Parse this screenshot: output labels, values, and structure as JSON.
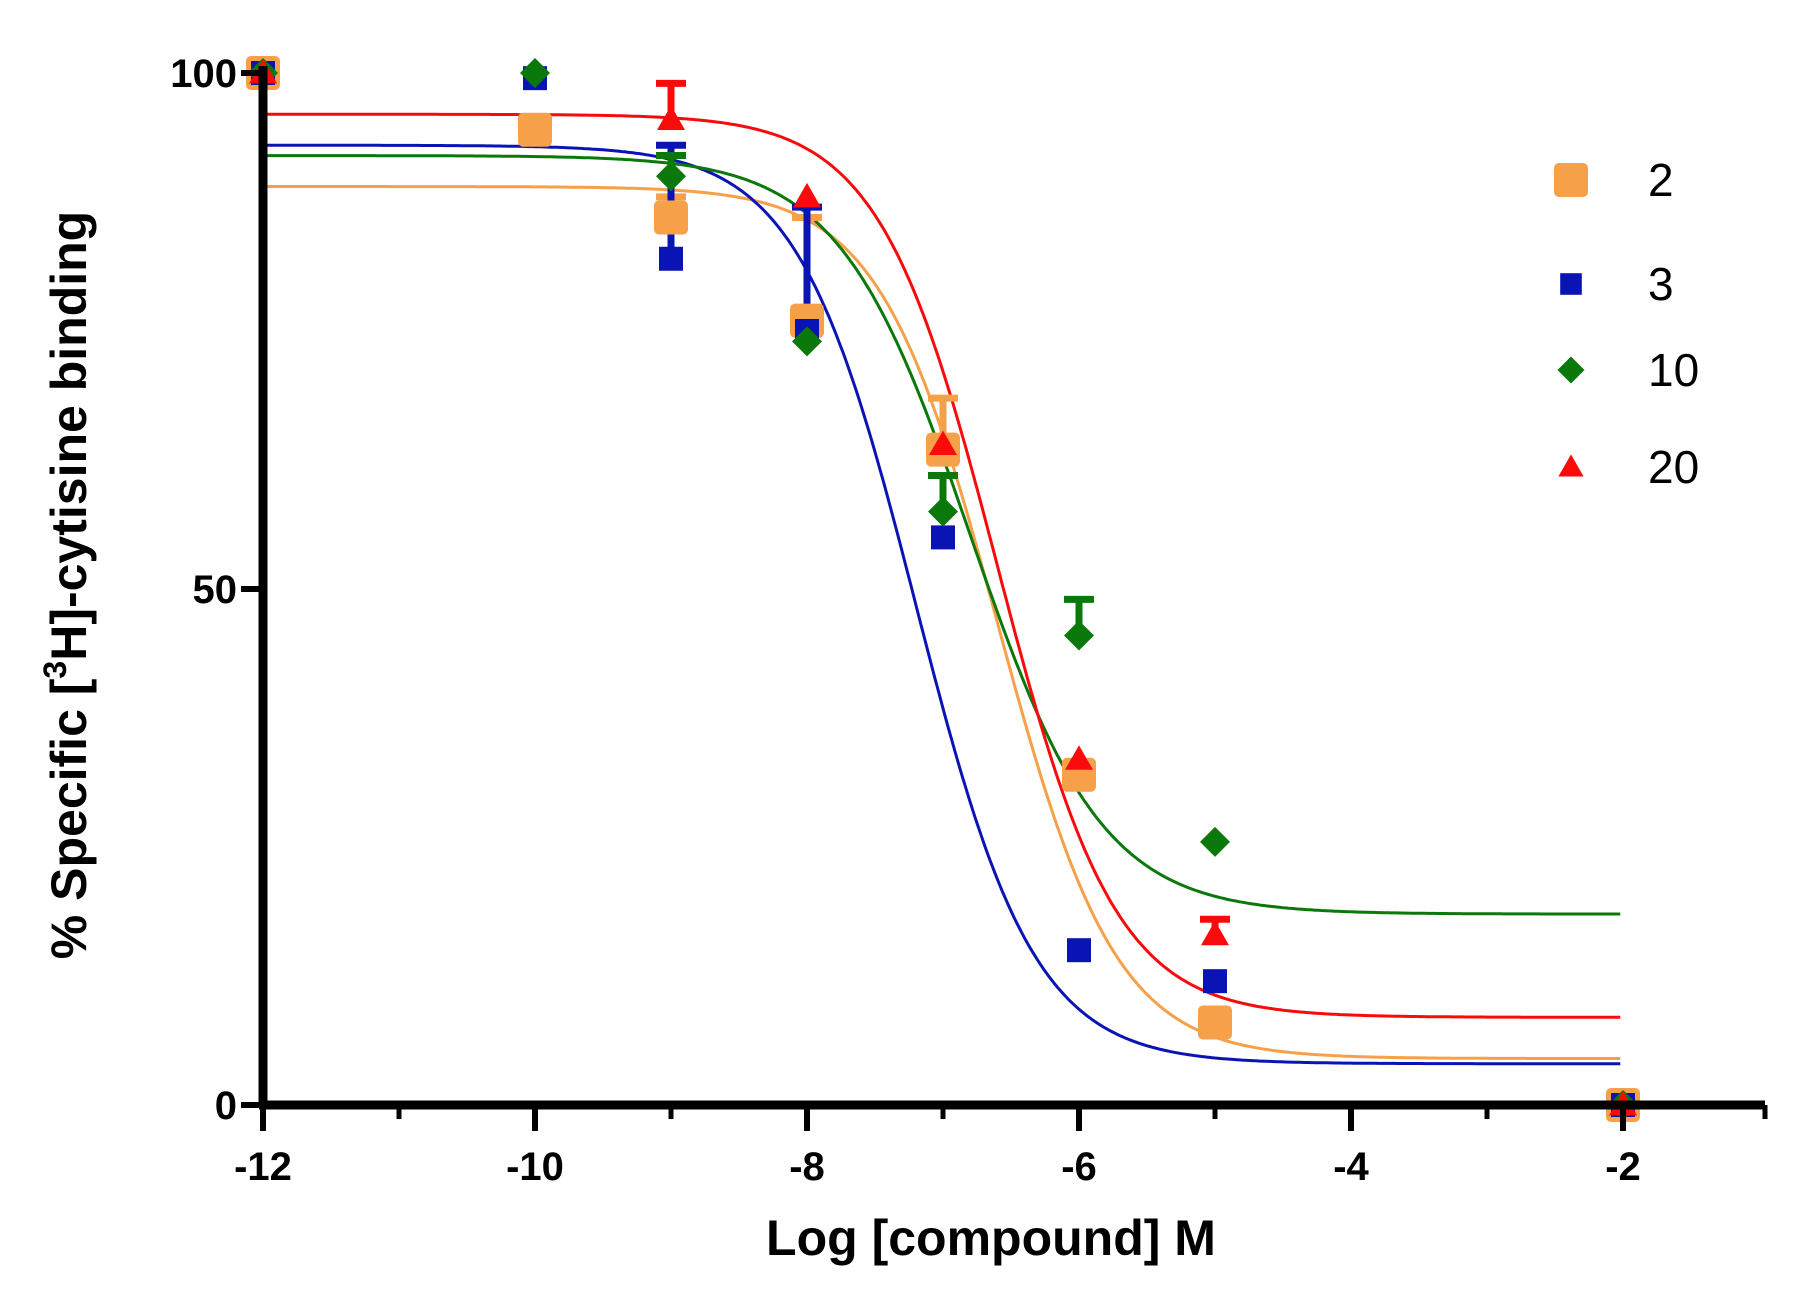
{
  "chart_data": {
    "type": "scatter",
    "title": "",
    "xlabel": "Log [compound] M",
    "ylabel_parts": [
      "% Specific [",
      "3",
      "H]-cytisine binding"
    ],
    "xlim": [
      -12,
      -1
    ],
    "ylim": [
      0,
      100
    ],
    "x_ticks": [
      -12,
      -10,
      -8,
      -6,
      -4,
      -2
    ],
    "x_minor_ticks": [
      -11,
      -9,
      -7,
      -5,
      -3
    ],
    "y_ticks": [
      0,
      50,
      100
    ],
    "legend_position": "top-right",
    "series": [
      {
        "name": "2",
        "color": "#F7A04A",
        "marker": "rounded-square",
        "points": [
          {
            "x": -12,
            "y": 100
          },
          {
            "x": -10,
            "y": 94.5
          },
          {
            "x": -9,
            "y": 86
          },
          {
            "x": -8,
            "y": 76
          },
          {
            "x": -7,
            "y": 63.5
          },
          {
            "x": -6,
            "y": 32
          },
          {
            "x": -5,
            "y": 8
          },
          {
            "x": -2,
            "y": 0
          }
        ],
        "errors": [
          {
            "x": -9,
            "y": 86,
            "err": 2
          },
          {
            "x": -8,
            "y": 76,
            "err": 10
          },
          {
            "x": -7,
            "y": 63.5,
            "err": 5
          }
        ],
        "fit": {
          "top": 89,
          "bottom": 4.5,
          "logIC50": -6.6,
          "hill": 1.0
        }
      },
      {
        "name": "3",
        "color": "#0A14B4",
        "marker": "square",
        "points": [
          {
            "x": -12,
            "y": 100
          },
          {
            "x": -10,
            "y": 99.5
          },
          {
            "x": -9,
            "y": 82
          },
          {
            "x": -8,
            "y": 75
          },
          {
            "x": -7,
            "y": 55
          },
          {
            "x": -6,
            "y": 15
          },
          {
            "x": -5,
            "y": 12
          },
          {
            "x": -2,
            "y": 0
          }
        ],
        "errors": [
          {
            "x": -9,
            "y": 82,
            "err": 11
          },
          {
            "x": -8,
            "y": 75,
            "err": 12
          }
        ],
        "fit": {
          "top": 93,
          "bottom": 4,
          "logIC50": -7.2,
          "hill": 1.0
        }
      },
      {
        "name": "10",
        "color": "#0A780A",
        "marker": "diamond",
        "points": [
          {
            "x": -12,
            "y": 100
          },
          {
            "x": -10,
            "y": 100
          },
          {
            "x": -9,
            "y": 90
          },
          {
            "x": -8,
            "y": 74
          },
          {
            "x": -7,
            "y": 57.5
          },
          {
            "x": -6,
            "y": 45.5
          },
          {
            "x": -5,
            "y": 25.5
          },
          {
            "x": -2,
            "y": 0
          }
        ],
        "errors": [
          {
            "x": -9,
            "y": 90,
            "err": 2
          },
          {
            "x": -8,
            "y": 74,
            "err": 2
          },
          {
            "x": -7,
            "y": 57.5,
            "err": 3.5
          },
          {
            "x": -6,
            "y": 45.5,
            "err": 3.5
          }
        ],
        "fit": {
          "top": 92,
          "bottom": 18.5,
          "logIC50": -6.8,
          "hill": 0.9
        }
      },
      {
        "name": "20",
        "color": "#FA0A0A",
        "marker": "triangle",
        "points": [
          {
            "x": -12,
            "y": 100
          },
          {
            "x": -9,
            "y": 95.5
          },
          {
            "x": -8,
            "y": 88
          },
          {
            "x": -7,
            "y": 64
          },
          {
            "x": -6,
            "y": 33.5
          },
          {
            "x": -5,
            "y": 16.5
          },
          {
            "x": -2,
            "y": 0
          }
        ],
        "errors": [
          {
            "x": -9,
            "y": 95.5,
            "err": 3.5
          },
          {
            "x": -5,
            "y": 16.5,
            "err": 1.5
          }
        ],
        "fit": {
          "top": 96,
          "bottom": 8.5,
          "logIC50": -6.6,
          "hill": 1.0
        }
      }
    ]
  }
}
